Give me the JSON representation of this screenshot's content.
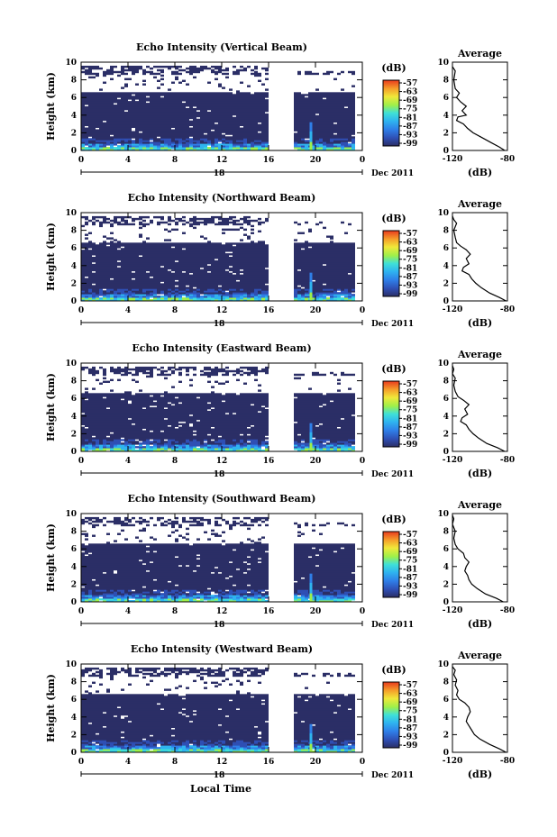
{
  "figure": {
    "bottom_label": "Local Time",
    "colors": [
      "#2b2e66",
      "#2f4fb4",
      "#2f7fe8",
      "#2fb4f0",
      "#3fe0d8",
      "#9ef04a",
      "#f0e83a",
      "#f5a02a",
      "#e83a1e",
      "#b81e18"
    ]
  },
  "chart_data": [
    {
      "type": "heatmap",
      "title": "Echo Intensity (Vertical Beam)",
      "ylabel": "Height (km)",
      "xlim": [
        0,
        24
      ],
      "ylim": [
        0,
        10
      ],
      "x_ticks": [
        "0",
        "4",
        "8",
        "12",
        "16",
        "20",
        "0"
      ],
      "y_ticks": [
        "0",
        "2",
        "4",
        "6",
        "8",
        "10"
      ],
      "date_day": "18",
      "date_label": "Dec 2011",
      "data_gap_hours": [
        16,
        18
      ],
      "colorbar": {
        "unit": "(dB)",
        "ticks": [
          "-57",
          "-63",
          "-69",
          "-75",
          "-81",
          "-87",
          "-93",
          "-99"
        ]
      },
      "profile": {
        "title": "Average",
        "xlabel": "(dB)",
        "xlim": [
          -120,
          -80
        ],
        "x_ticks": [
          "-120",
          "-80"
        ],
        "y_ticks": [
          "0",
          "2",
          "4",
          "6",
          "8",
          "10"
        ],
        "points": [
          [
            -82,
            0
          ],
          [
            -86,
            0.4
          ],
          [
            -92,
            0.9
          ],
          [
            -99,
            1.5
          ],
          [
            -105,
            2.0
          ],
          [
            -109,
            2.5
          ],
          [
            -112,
            3.0
          ],
          [
            -117,
            3.4
          ],
          [
            -116,
            3.8
          ],
          [
            -110,
            4.0
          ],
          [
            -113,
            4.5
          ],
          [
            -110,
            5.0
          ],
          [
            -114,
            5.5
          ],
          [
            -117,
            6.0
          ],
          [
            -115,
            6.5
          ],
          [
            -118,
            7.0
          ],
          [
            -119,
            8.0
          ],
          [
            -118,
            9.0
          ],
          [
            -120,
            9.5
          ]
        ]
      }
    },
    {
      "type": "heatmap",
      "title": "Echo Intensity (Northward Beam)",
      "ylabel": "Height (km)",
      "xlim": [
        0,
        24
      ],
      "ylim": [
        0,
        10
      ],
      "x_ticks": [
        "0",
        "4",
        "8",
        "12",
        "16",
        "20",
        "0"
      ],
      "y_ticks": [
        "0",
        "2",
        "4",
        "6",
        "8",
        "10"
      ],
      "date_day": "18",
      "date_label": "Dec 2011",
      "data_gap_hours": [
        16,
        18
      ],
      "colorbar": {
        "unit": "(dB)",
        "ticks": [
          "-57",
          "-63",
          "-69",
          "-75",
          "-81",
          "-87",
          "-93",
          "-99"
        ]
      },
      "profile": {
        "title": "Average",
        "xlabel": "(dB)",
        "xlim": [
          -120,
          -80
        ],
        "x_ticks": [
          "-120",
          "-80"
        ],
        "y_ticks": [
          "0",
          "2",
          "4",
          "6",
          "8",
          "10"
        ],
        "points": [
          [
            -81,
            0
          ],
          [
            -86,
            0.4
          ],
          [
            -93,
            0.9
          ],
          [
            -99,
            1.5
          ],
          [
            -103,
            2.0
          ],
          [
            -106,
            2.5
          ],
          [
            -108,
            3.0
          ],
          [
            -113,
            3.4
          ],
          [
            -112,
            3.8
          ],
          [
            -108,
            4.2
          ],
          [
            -110,
            4.8
          ],
          [
            -107,
            5.3
          ],
          [
            -110,
            5.8
          ],
          [
            -114,
            6.2
          ],
          [
            -117,
            6.6
          ],
          [
            -118,
            7.2
          ],
          [
            -119,
            8.0
          ],
          [
            -117,
            8.8
          ],
          [
            -119,
            9.2
          ],
          [
            -120,
            9.6
          ]
        ]
      }
    },
    {
      "type": "heatmap",
      "title": "Echo Intensity (Eastward Beam)",
      "ylabel": "Height (km)",
      "xlim": [
        0,
        24
      ],
      "ylim": [
        0,
        10
      ],
      "x_ticks": [
        "0",
        "4",
        "8",
        "12",
        "16",
        "20",
        "0"
      ],
      "y_ticks": [
        "0",
        "2",
        "4",
        "6",
        "8",
        "10"
      ],
      "date_day": "18",
      "date_label": "Dec 2011",
      "data_gap_hours": [
        16,
        18
      ],
      "colorbar": {
        "unit": "(dB)",
        "ticks": [
          "-57",
          "-63",
          "-69",
          "-75",
          "-81",
          "-87",
          "-93",
          "-99"
        ]
      },
      "profile": {
        "title": "Average",
        "xlabel": "(dB)",
        "xlim": [
          -120,
          -80
        ],
        "x_ticks": [
          "-120",
          "-80"
        ],
        "y_ticks": [
          "0",
          "2",
          "4",
          "6",
          "8",
          "10"
        ],
        "points": [
          [
            -82,
            0
          ],
          [
            -87,
            0.4
          ],
          [
            -95,
            0.9
          ],
          [
            -101,
            1.5
          ],
          [
            -105,
            2.0
          ],
          [
            -108,
            2.5
          ],
          [
            -110,
            3.0
          ],
          [
            -114,
            3.4
          ],
          [
            -113,
            3.8
          ],
          [
            -109,
            4.2
          ],
          [
            -111,
            4.8
          ],
          [
            -108,
            5.3
          ],
          [
            -112,
            5.8
          ],
          [
            -116,
            6.2
          ],
          [
            -118,
            6.8
          ],
          [
            -119,
            7.5
          ],
          [
            -118,
            8.3
          ],
          [
            -120,
            8.8
          ],
          [
            -119,
            9.3
          ],
          [
            -120,
            9.7
          ]
        ]
      }
    },
    {
      "type": "heatmap",
      "title": "Echo Intensity (Southward Beam)",
      "ylabel": "Height (km)",
      "xlim": [
        0,
        24
      ],
      "ylim": [
        0,
        10
      ],
      "x_ticks": [
        "0",
        "4",
        "8",
        "12",
        "16",
        "20",
        "0"
      ],
      "y_ticks": [
        "0",
        "2",
        "4",
        "6",
        "8",
        "10"
      ],
      "date_day": "18",
      "date_label": "Dec 2011",
      "data_gap_hours": [
        16,
        18
      ],
      "colorbar": {
        "unit": "(dB)",
        "ticks": [
          "-57",
          "-63",
          "-69",
          "-75",
          "-81",
          "-87",
          "-93",
          "-99"
        ]
      },
      "profile": {
        "title": "Average",
        "xlabel": "(dB)",
        "xlim": [
          -120,
          -80
        ],
        "x_ticks": [
          "-120",
          "-80"
        ],
        "y_ticks": [
          "0",
          "2",
          "4",
          "6",
          "8",
          "10"
        ],
        "points": [
          [
            -83,
            0
          ],
          [
            -88,
            0.4
          ],
          [
            -96,
            0.9
          ],
          [
            -102,
            1.5
          ],
          [
            -106,
            2.0
          ],
          [
            -108,
            2.5
          ],
          [
            -109,
            3.0
          ],
          [
            -111,
            3.5
          ],
          [
            -110,
            4.0
          ],
          [
            -108,
            4.5
          ],
          [
            -111,
            5.0
          ],
          [
            -112,
            5.5
          ],
          [
            -116,
            6.0
          ],
          [
            -118,
            6.5
          ],
          [
            -119,
            7.2
          ],
          [
            -118,
            8.0
          ],
          [
            -120,
            8.8
          ],
          [
            -119,
            9.4
          ],
          [
            -120,
            9.8
          ]
        ]
      }
    },
    {
      "type": "heatmap",
      "title": "Echo Intensity (Westward Beam)",
      "ylabel": "Height (km)",
      "xlim": [
        0,
        24
      ],
      "ylim": [
        0,
        10
      ],
      "x_ticks": [
        "0",
        "4",
        "8",
        "12",
        "16",
        "20",
        "0"
      ],
      "y_ticks": [
        "0",
        "2",
        "4",
        "6",
        "8",
        "10"
      ],
      "date_day": "18",
      "date_label": "Dec 2011",
      "data_gap_hours": [
        16,
        18
      ],
      "colorbar": {
        "unit": "(dB)",
        "ticks": [
          "-57",
          "-63",
          "-69",
          "-75",
          "-81",
          "-87",
          "-93",
          "-99"
        ]
      },
      "profile": {
        "title": "Average",
        "xlabel": "(dB)",
        "xlim": [
          -120,
          -80
        ],
        "x_ticks": [
          "-120",
          "-80"
        ],
        "y_ticks": [
          "0",
          "2",
          "4",
          "6",
          "8",
          "10"
        ],
        "points": [
          [
            -81,
            0
          ],
          [
            -86,
            0.4
          ],
          [
            -93,
            0.9
          ],
          [
            -100,
            1.5
          ],
          [
            -104,
            2.0
          ],
          [
            -106,
            2.5
          ],
          [
            -108,
            3.0
          ],
          [
            -110,
            3.5
          ],
          [
            -109,
            4.0
          ],
          [
            -107,
            4.6
          ],
          [
            -108,
            5.1
          ],
          [
            -111,
            5.6
          ],
          [
            -115,
            6.0
          ],
          [
            -117,
            6.5
          ],
          [
            -116,
            7.0
          ],
          [
            -118,
            7.6
          ],
          [
            -117,
            8.2
          ],
          [
            -119,
            8.8
          ],
          [
            -118,
            9.3
          ],
          [
            -120,
            9.7
          ]
        ]
      }
    }
  ]
}
